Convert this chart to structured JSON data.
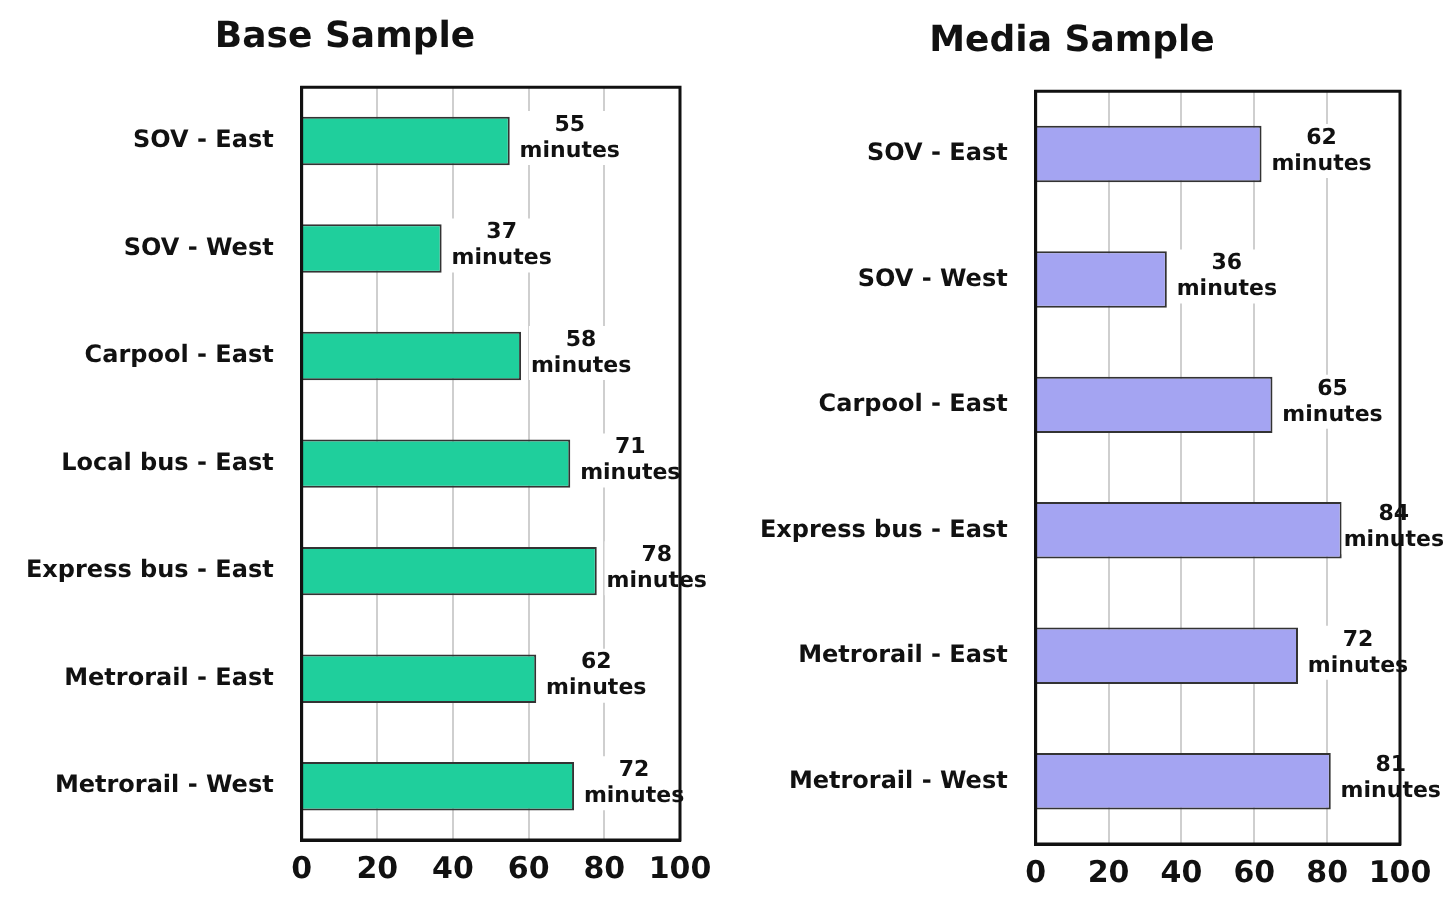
{
  "chart_data": [
    {
      "type": "bar",
      "orientation": "horizontal",
      "title": "Base Sample",
      "categories": [
        "SOV - East",
        "SOV - West",
        "Carpool - East",
        "Local bus - East",
        "Express bus - East",
        "Metrorail - East",
        "Metrorail - West"
      ],
      "values": [
        55,
        37,
        58,
        71,
        78,
        62,
        72
      ],
      "color": "#1fcf9c",
      "value_labels": [
        "55 minutes",
        "37 minutes",
        "58 minutes",
        "71 minutes",
        "78 minutes",
        "62 minutes",
        "72 minutes"
      ],
      "xlim": [
        0,
        100
      ],
      "xticks": [
        0,
        20,
        40,
        60,
        80,
        100
      ],
      "grid": "x",
      "legend": false
    },
    {
      "type": "bar",
      "orientation": "horizontal",
      "title": "Media Sample",
      "categories": [
        "SOV - East",
        "SOV - West",
        "Carpool - East",
        "Express bus - East",
        "Metrorail - East",
        "Metrorail - West"
      ],
      "values": [
        62,
        36,
        65,
        84,
        72,
        81
      ],
      "color": "#a4a4f2",
      "value_labels": [
        "62 minutes",
        "36 minutes",
        "65 minutes",
        "84 minutes",
        "72 minutes",
        "81 minutes"
      ],
      "xlim": [
        0,
        100
      ],
      "xticks": [
        0,
        20,
        40,
        60,
        80,
        100
      ],
      "grid": "x",
      "legend": false
    }
  ]
}
